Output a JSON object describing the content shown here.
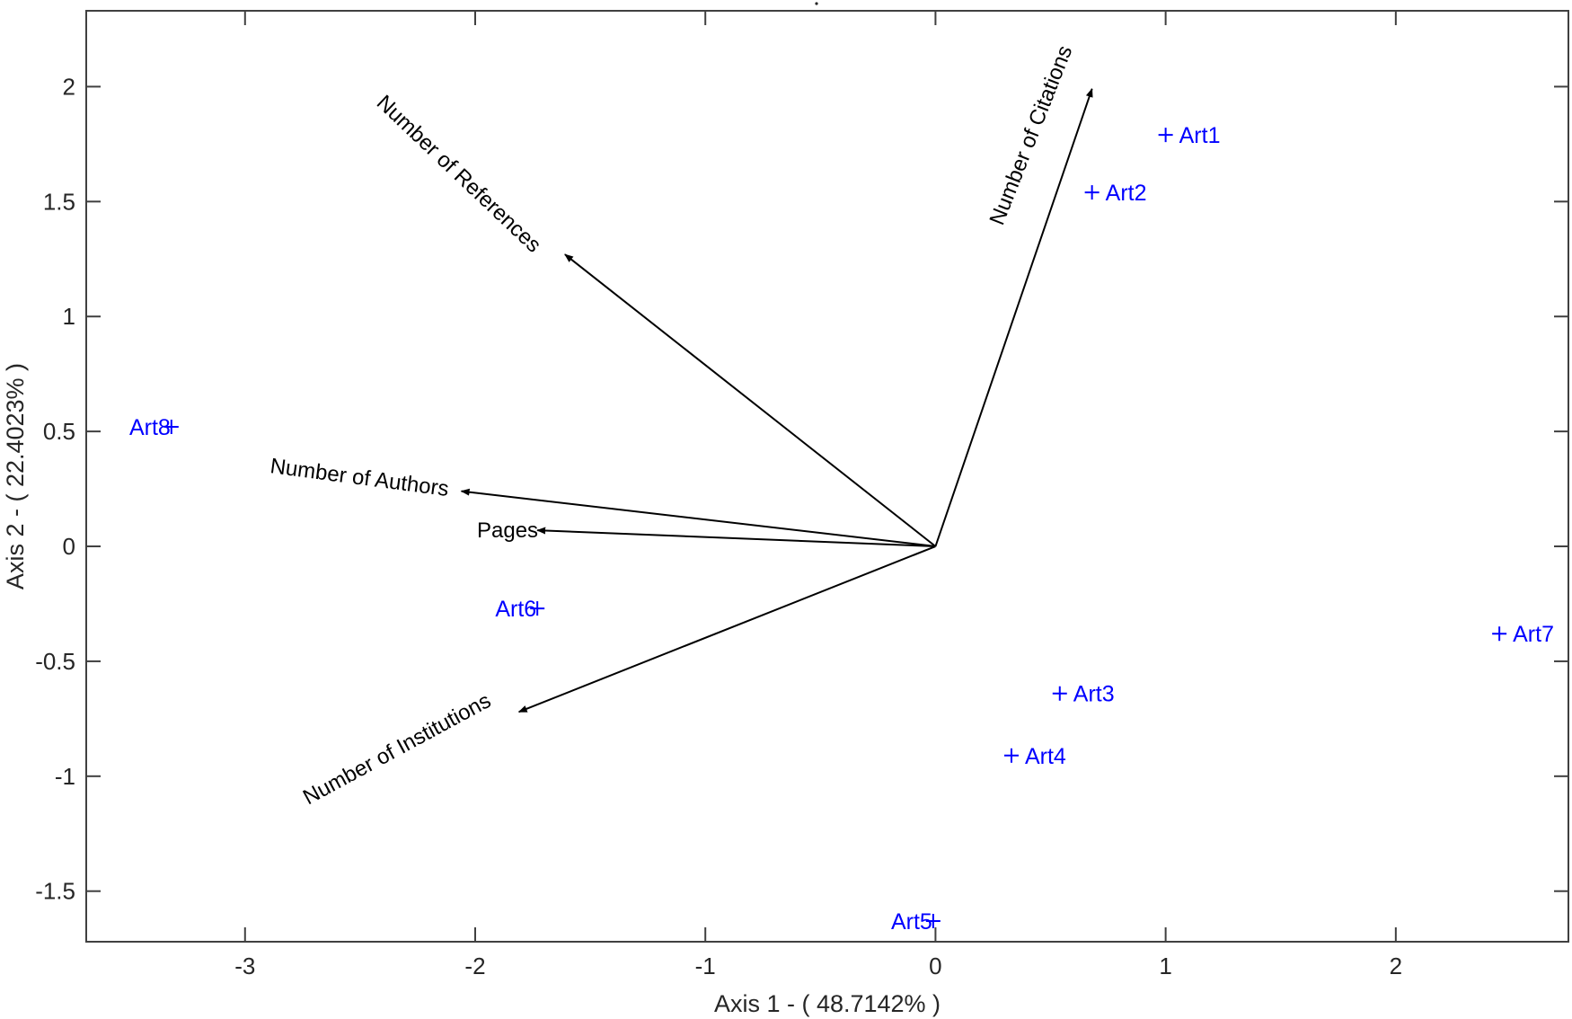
{
  "chart_data": {
    "type": "scatter",
    "subtype": "biplot",
    "title": "",
    "xlabel": "Axis 1 - ( 48.7142% )",
    "ylabel": "Axis 2 - ( 22.4023% )",
    "xlim": [
      -3.69,
      2.75
    ],
    "ylim": [
      -1.72,
      2.33
    ],
    "xticks": [
      -3,
      -2,
      -1,
      0,
      1,
      2
    ],
    "yticks": [
      -1.5,
      -1,
      -0.5,
      0,
      0.5,
      1,
      1.5,
      2
    ],
    "xtick_labels": [
      "-3",
      "-2",
      "-1",
      "0",
      "1",
      "2"
    ],
    "ytick_labels": [
      "-1.5",
      "-1",
      "-0.5",
      "0",
      "0.5",
      "1",
      "1.5",
      "2"
    ],
    "grid": false,
    "legend": null,
    "colors": {
      "observations": "#0000ff",
      "vectors": "#000000",
      "axes": "#404040"
    },
    "vectors": [
      {
        "name": "Number of Citations",
        "x": 0.68,
        "y": 1.99
      },
      {
        "name": "Number of References",
        "x": -1.61,
        "y": 1.27
      },
      {
        "name": "Number of Authors",
        "x": -2.06,
        "y": 0.24
      },
      {
        "name": "Pages",
        "x": -1.73,
        "y": 0.07
      },
      {
        "name": "Number of Institutions",
        "x": -1.81,
        "y": -0.72
      }
    ],
    "observations": [
      {
        "name": "Art1",
        "x": 1.0,
        "y": 1.79,
        "label_side": "right"
      },
      {
        "name": "Art2",
        "x": 0.68,
        "y": 1.54,
        "label_side": "right"
      },
      {
        "name": "Art3",
        "x": 0.54,
        "y": -0.64,
        "label_side": "right"
      },
      {
        "name": "Art4",
        "x": 0.33,
        "y": -0.91,
        "label_side": "right"
      },
      {
        "name": "Art5",
        "x": -0.01,
        "y": -1.63,
        "label_side": "left"
      },
      {
        "name": "Art6",
        "x": -1.73,
        "y": -0.27,
        "label_side": "left"
      },
      {
        "name": "Art7",
        "x": 2.45,
        "y": -0.38,
        "label_side": "right"
      },
      {
        "name": "Art8",
        "x": -3.32,
        "y": 0.52,
        "label_side": "left"
      }
    ]
  }
}
